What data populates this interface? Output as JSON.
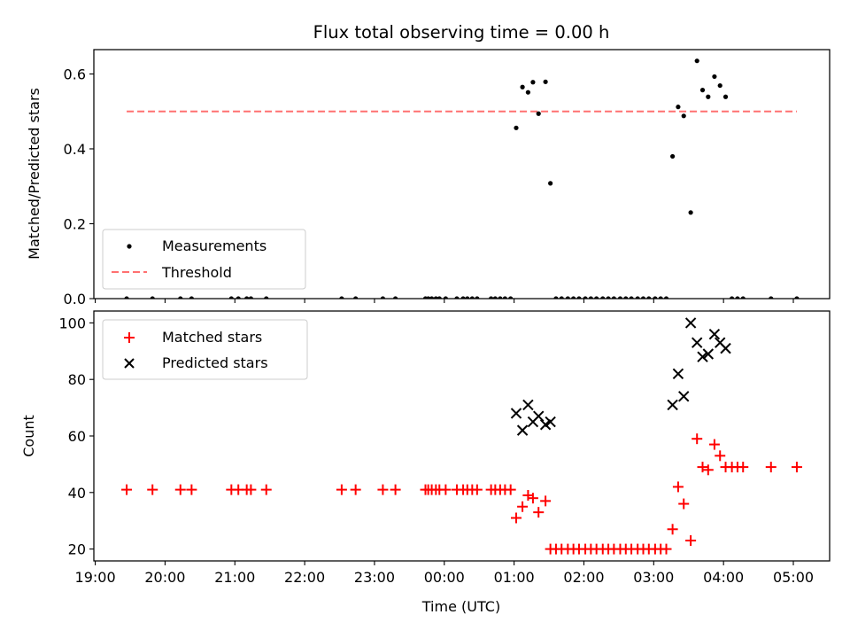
{
  "chart_data": [
    {
      "type": "scatter",
      "title": "Flux total observing time = 0.00 h",
      "xlabel": "",
      "ylabel": "Matched/Predicted stars",
      "ylim": [
        0,
        0.665
      ],
      "yticks": [
        "0.0",
        "0.2",
        "0.4",
        "0.6"
      ],
      "ytick_values": [
        0,
        0.2,
        0.4,
        0.6
      ],
      "grid": false,
      "legend": "bottom-left",
      "series": [
        {
          "name": "Measurements",
          "marker": "dot",
          "color": "#000000",
          "x_hours": [
            19.45,
            19.82,
            20.22,
            20.38,
            20.95,
            21.05,
            21.17,
            21.23,
            21.45,
            22.53,
            22.73,
            23.12,
            23.3,
            23.73,
            23.77,
            23.82,
            23.88,
            23.93,
            24.02,
            24.18,
            24.27,
            24.33,
            24.4,
            24.47,
            24.67,
            24.73,
            24.8,
            24.87,
            24.95,
            25.03,
            25.12,
            25.2,
            25.27,
            25.35,
            25.45,
            25.52,
            25.6,
            25.68,
            25.77,
            25.85,
            25.93,
            26.02,
            26.1,
            26.18,
            26.27,
            26.35,
            26.43,
            26.52,
            26.6,
            26.68,
            26.77,
            26.85,
            26.93,
            27.02,
            27.1,
            27.18,
            27.27,
            27.35,
            27.43,
            27.53,
            27.62,
            27.7,
            27.78,
            27.87,
            27.95,
            28.03,
            28.12,
            28.2,
            28.28,
            28.68,
            29.05
          ],
          "y": [
            0,
            0,
            0,
            0,
            0,
            0,
            0,
            0,
            0,
            0,
            0,
            0,
            0,
            0,
            0,
            0,
            0,
            0,
            0,
            0,
            0,
            0,
            0,
            0,
            0,
            0,
            0,
            0,
            0,
            0.456,
            0.565,
            0.551,
            0.578,
            0.494,
            0.579,
            0.308,
            0,
            0,
            0,
            0,
            0,
            0,
            0,
            0,
            0,
            0,
            0,
            0,
            0,
            0,
            0,
            0,
            0,
            0,
            0,
            0,
            0.38,
            0.512,
            0.488,
            0.23,
            0.635,
            0.557,
            0.539,
            0.593,
            0.569,
            0.539,
            0,
            0,
            0,
            0,
            0
          ]
        },
        {
          "name": "Threshold",
          "marker": "dashed-line",
          "color": "#ff7070",
          "x_hours": [
            19.45,
            29.05
          ],
          "y": [
            0.5,
            0.5
          ]
        }
      ]
    },
    {
      "type": "scatter",
      "title": "",
      "xlabel": "Time (UTC)",
      "ylabel": "Count",
      "ylim": [
        15.8,
        104.2
      ],
      "yticks": [
        "20",
        "40",
        "60",
        "80",
        "100"
      ],
      "ytick_values": [
        20,
        40,
        60,
        80,
        100
      ],
      "grid": false,
      "legend": "top-left",
      "x_range_hours": [
        18.98,
        29.52
      ],
      "xticks": [
        "19:00",
        "20:00",
        "21:00",
        "22:00",
        "23:00",
        "00:00",
        "01:00",
        "02:00",
        "03:00",
        "04:00",
        "05:00"
      ],
      "xtick_values_hours": [
        19,
        20,
        21,
        22,
        23,
        24,
        25,
        26,
        27,
        28,
        29
      ],
      "series": [
        {
          "name": "Matched stars",
          "marker": "plus",
          "color": "#ff0000",
          "x_hours": [
            19.45,
            19.82,
            20.22,
            20.38,
            20.95,
            21.05,
            21.17,
            21.23,
            21.45,
            22.53,
            22.73,
            23.12,
            23.3,
            23.73,
            23.77,
            23.82,
            23.88,
            23.93,
            24.02,
            24.18,
            24.27,
            24.33,
            24.4,
            24.47,
            24.67,
            24.73,
            24.8,
            24.87,
            24.95,
            25.03,
            25.12,
            25.2,
            25.27,
            25.35,
            25.45,
            25.52,
            25.6,
            25.68,
            25.77,
            25.85,
            25.93,
            26.02,
            26.1,
            26.18,
            26.27,
            26.35,
            26.43,
            26.52,
            26.6,
            26.68,
            26.77,
            26.85,
            26.93,
            27.02,
            27.1,
            27.18,
            27.27,
            27.35,
            27.43,
            27.53,
            27.62,
            27.7,
            27.78,
            27.87,
            27.95,
            28.03,
            28.12,
            28.2,
            28.28,
            28.68,
            29.05
          ],
          "y": [
            41,
            41,
            41,
            41,
            41,
            41,
            41,
            41,
            41,
            41,
            41,
            41,
            41,
            41,
            41,
            41,
            41,
            41,
            41,
            41,
            41,
            41,
            41,
            41,
            41,
            41,
            41,
            41,
            41,
            31,
            35,
            39,
            38,
            33,
            37,
            20,
            20,
            20,
            20,
            20,
            20,
            20,
            20,
            20,
            20,
            20,
            20,
            20,
            20,
            20,
            20,
            20,
            20,
            20,
            20,
            20,
            27,
            42,
            36,
            23,
            59,
            49,
            48,
            57,
            53,
            49,
            49,
            49,
            49,
            49,
            49
          ]
        },
        {
          "name": "Predicted stars",
          "marker": "x",
          "color": "#000000",
          "x_hours": [
            25.03,
            25.12,
            25.2,
            25.27,
            25.35,
            25.45,
            25.52,
            27.27,
            27.35,
            27.43,
            27.53,
            27.62,
            27.7,
            27.78,
            27.87,
            27.95,
            28.03
          ],
          "y": [
            68,
            62,
            71,
            65,
            67,
            64,
            65,
            71,
            82,
            74,
            100,
            93,
            88,
            89,
            96,
            93,
            91
          ]
        }
      ]
    }
  ]
}
